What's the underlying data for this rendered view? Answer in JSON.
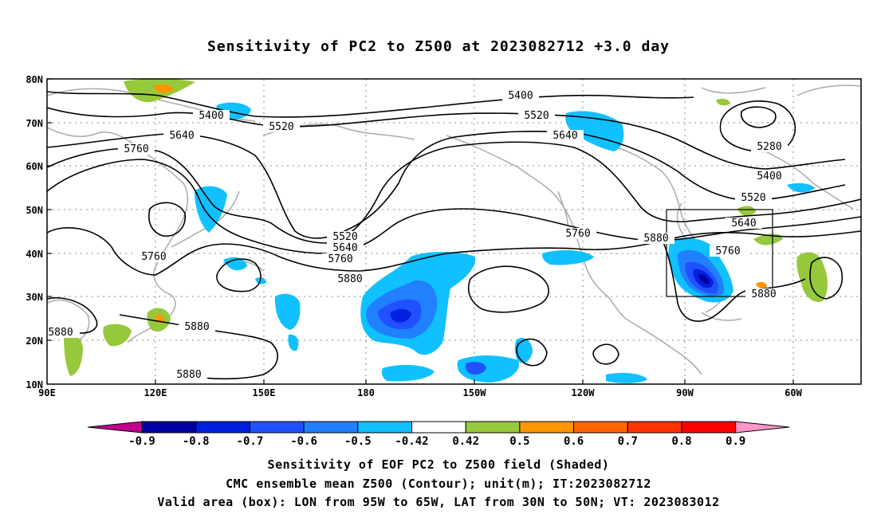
{
  "title": "Sensitivity of PC2 to Z500 at 2023082712 +3.0 day",
  "map": {
    "lat_labels": [
      "80N",
      "70N",
      "60N",
      "50N",
      "40N",
      "30N",
      "20N",
      "10N"
    ],
    "lon_labels": [
      "90E",
      "120E",
      "150E",
      "180",
      "150W",
      "120W",
      "90W",
      "60W"
    ],
    "contour_labels": [
      "5400",
      "5520",
      "5640",
      "5760",
      "5520",
      "5400",
      "5640",
      "5280",
      "5400",
      "5520",
      "5640",
      "5760",
      "5880",
      "5760",
      "5520",
      "5640",
      "5760",
      "5880",
      "5880",
      "5880",
      "5880",
      "5760",
      "5880"
    ],
    "valid_box": {
      "lon_from": "95W",
      "lon_to": "65W",
      "lat_from": "30N",
      "lat_to": "50N"
    },
    "colors": {
      "neg_09": "#c0008c",
      "neg_0_9": "#0000a0",
      "neg_0_8": "#0020e0",
      "neg_0_7": "#2050ff",
      "neg_0_6": "#2080ff",
      "neg_0_5": "#10c0ff",
      "white": "#ffffff",
      "pos_0_42": "#96c83c",
      "pos_0_5": "#ff9600",
      "pos_0_6": "#ff6400",
      "pos_0_7": "#ff3200",
      "pos_0_8": "#ff0000",
      "pos_09": "#ff96c8",
      "land": "#aaaaaa"
    }
  },
  "colorbar": {
    "labels": [
      "-0.9",
      "-0.8",
      "-0.7",
      "-0.6",
      "-0.5",
      "-0.42",
      "0.42",
      "0.5",
      "0.6",
      "0.7",
      "0.8",
      "0.9"
    ]
  },
  "caption": {
    "line1": "Sensitivity of EOF PC2 to Z500 field (Shaded)",
    "line2": "CMC ensemble mean Z500 (Contour); unit(m); IT:2023082712",
    "line3": "Valid area (box): LON from 95W to 65W, LAT from 30N to 50N; VT: 2023083012"
  }
}
